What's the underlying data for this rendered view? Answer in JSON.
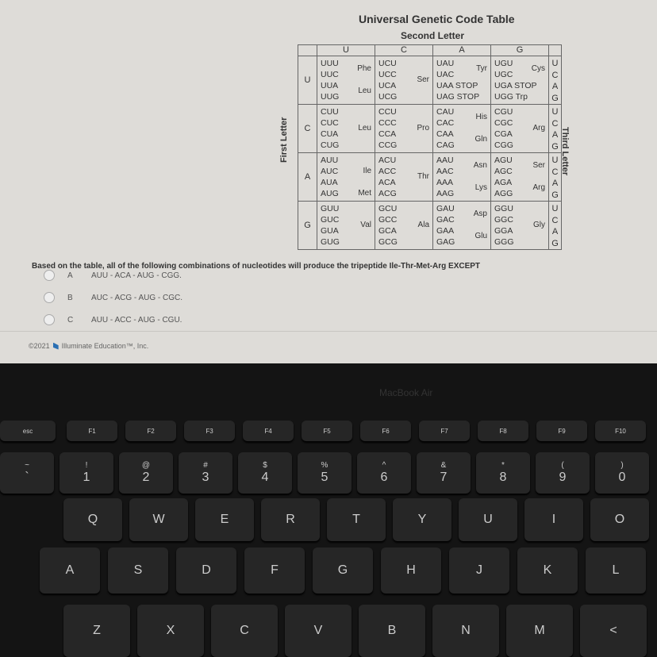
{
  "table": {
    "title": "Universal Genetic Code Table",
    "second_letter": "Second Letter",
    "first_letter": "First Letter",
    "third_letter": "Third Letter",
    "columns": [
      "U",
      "C",
      "A",
      "G"
    ],
    "rows": [
      {
        "first": "U",
        "third": [
          "U",
          "C",
          "A",
          "G"
        ],
        "cells": [
          {
            "codons": [
              "UUU",
              "UUC",
              "UUA",
              "UUG"
            ],
            "aa": [
              {
                "name": "Phe",
                "at": 0.5
              },
              {
                "name": "Leu",
                "at": 2.5
              }
            ]
          },
          {
            "codons": [
              "UCU",
              "UCC",
              "UCA",
              "UCG"
            ],
            "aa": [
              {
                "name": "Ser",
                "at": 1.5
              }
            ]
          },
          {
            "codons": [
              "UAU",
              "UAC",
              "UAA STOP",
              "UAG STOP"
            ],
            "aa": [
              {
                "name": "Tyr",
                "at": 0.5
              }
            ]
          },
          {
            "codons": [
              "UGU",
              "UGC",
              "UGA STOP",
              "UGG Trp"
            ],
            "aa": [
              {
                "name": "Cys",
                "at": 0.5
              }
            ]
          }
        ]
      },
      {
        "first": "C",
        "third": [
          "U",
          "C",
          "A",
          "G"
        ],
        "cells": [
          {
            "codons": [
              "CUU",
              "CUC",
              "CUA",
              "CUG"
            ],
            "aa": [
              {
                "name": "Leu",
                "at": 1.5
              }
            ]
          },
          {
            "codons": [
              "CCU",
              "CCC",
              "CCA",
              "CCG"
            ],
            "aa": [
              {
                "name": "Pro",
                "at": 1.5
              }
            ]
          },
          {
            "codons": [
              "CAU",
              "CAC",
              "CAA",
              "CAG"
            ],
            "aa": [
              {
                "name": "His",
                "at": 0.5
              },
              {
                "name": "Gln",
                "at": 2.5
              }
            ]
          },
          {
            "codons": [
              "CGU",
              "CGC",
              "CGA",
              "CGG"
            ],
            "aa": [
              {
                "name": "Arg",
                "at": 1.5
              }
            ]
          }
        ]
      },
      {
        "first": "A",
        "third": [
          "U",
          "C",
          "A",
          "G"
        ],
        "cells": [
          {
            "codons": [
              "AUU",
              "AUC",
              "AUA",
              "AUG"
            ],
            "aa": [
              {
                "name": "Ile",
                "at": 1
              },
              {
                "name": "Met",
                "at": 3
              }
            ]
          },
          {
            "codons": [
              "ACU",
              "ACC",
              "ACA",
              "ACG"
            ],
            "aa": [
              {
                "name": "Thr",
                "at": 1.5
              }
            ]
          },
          {
            "codons": [
              "AAU",
              "AAC",
              "AAA",
              "AAG"
            ],
            "aa": [
              {
                "name": "Asn",
                "at": 0.5
              },
              {
                "name": "Lys",
                "at": 2.5
              }
            ]
          },
          {
            "codons": [
              "AGU",
              "AGC",
              "AGA",
              "AGG"
            ],
            "aa": [
              {
                "name": "Ser",
                "at": 0.5
              },
              {
                "name": "Arg",
                "at": 2.5
              }
            ]
          }
        ]
      },
      {
        "first": "G",
        "third": [
          "U",
          "C",
          "A",
          "G"
        ],
        "cells": [
          {
            "codons": [
              "GUU",
              "GUC",
              "GUA",
              "GUG"
            ],
            "aa": [
              {
                "name": "Val",
                "at": 1.5
              }
            ]
          },
          {
            "codons": [
              "GCU",
              "GCC",
              "GCA",
              "GCG"
            ],
            "aa": [
              {
                "name": "Ala",
                "at": 1.5
              }
            ]
          },
          {
            "codons": [
              "GAU",
              "GAC",
              "GAA",
              "GAG"
            ],
            "aa": [
              {
                "name": "Asp",
                "at": 0.5
              },
              {
                "name": "Glu",
                "at": 2.5
              }
            ]
          },
          {
            "codons": [
              "GGU",
              "GGC",
              "GGA",
              "GGG"
            ],
            "aa": [
              {
                "name": "Gly",
                "at": 1.5
              }
            ]
          }
        ]
      }
    ]
  },
  "question": {
    "text": "Based on the table, all of the following combinations of nucleotides will produce the tripeptide Ile-Thr-Met-Arg EXCEPT",
    "options": [
      {
        "letter": "A",
        "text": "AUU - ACA - AUG - CGG."
      },
      {
        "letter": "B",
        "text": "AUC - ACG - AUG - CGC."
      },
      {
        "letter": "C",
        "text": "AUU - ACC - AUG - CGU."
      }
    ]
  },
  "footer": {
    "copyright": "©2021",
    "company": "Illuminate Education™, Inc."
  },
  "laptop_brand": "MacBook Air",
  "keyboard": {
    "fn_row": [
      "esc",
      "F1",
      "F2",
      "F3",
      "F4",
      "F5",
      "F6",
      "F7",
      "F8",
      "F9",
      "F10"
    ],
    "number_row": [
      [
        "~",
        "`"
      ],
      [
        "!",
        "1"
      ],
      [
        "@",
        "2"
      ],
      [
        "#",
        "3"
      ],
      [
        "$",
        "4"
      ],
      [
        "%",
        "5"
      ],
      [
        "^",
        "6"
      ],
      [
        "&",
        "7"
      ],
      [
        "*",
        "8"
      ],
      [
        "(",
        "9"
      ],
      [
        ")",
        "0"
      ]
    ],
    "q_row": [
      "Q",
      "W",
      "E",
      "R",
      "T",
      "Y",
      "U",
      "I",
      "O"
    ],
    "a_row": [
      "A",
      "S",
      "D",
      "F",
      "G",
      "H",
      "J",
      "K",
      "L"
    ],
    "z_row": [
      "Z",
      "X",
      "C",
      "V",
      "B",
      "N",
      "M",
      "<"
    ]
  }
}
